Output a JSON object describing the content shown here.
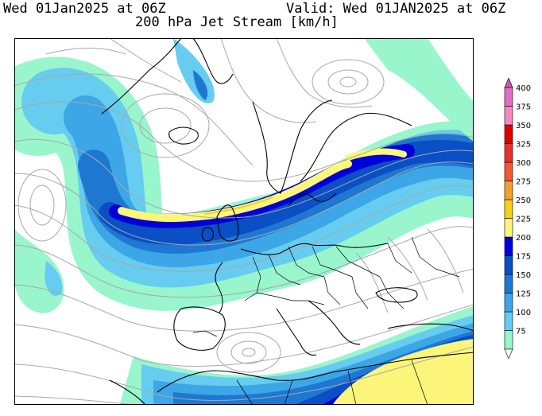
{
  "header": {
    "left": "Wed 01Jan2025 at 06Z",
    "right": "Valid: Wed 01JAN2025 at 06Z",
    "title": "200 hPa Jet Stream [km/h]"
  },
  "legend": {
    "levels": [
      {
        "value": "75",
        "color": "#99f5cc"
      },
      {
        "value": "100",
        "color": "#66ccf0"
      },
      {
        "value": "125",
        "color": "#3ca6e6"
      },
      {
        "value": "150",
        "color": "#1e78d2"
      },
      {
        "value": "175",
        "color": "#0a4fc4"
      },
      {
        "value": "200",
        "color": "#0000d8"
      },
      {
        "value": "225",
        "color": "#fbf57a"
      },
      {
        "value": "250",
        "color": "#f2d21e"
      },
      {
        "value": "275",
        "color": "#f0a030"
      },
      {
        "value": "300",
        "color": "#ee5a36"
      },
      {
        "value": "325",
        "color": "#e83030"
      },
      {
        "value": "350",
        "color": "#e00000"
      },
      {
        "value": "375",
        "color": "#f08cc4"
      },
      {
        "value": "400",
        "color": "#e070c0"
      }
    ],
    "below_color": "#ffffff",
    "above_color": "#d050b8"
  },
  "map": {
    "background": "#ffffff",
    "streamline_color": "#a8a8a8",
    "coast_color": "#000000",
    "border_color": "#000000"
  }
}
